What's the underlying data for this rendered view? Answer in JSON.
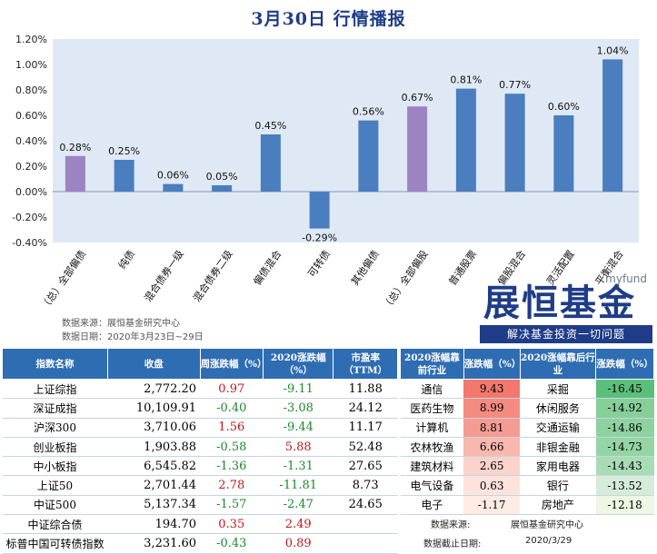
{
  "title": "3月30日  行情播报",
  "chart_data": {
    "type": "bar",
    "categories": [
      "（总）全部偏债",
      "纯债",
      "混合债券一级",
      "混合债券二级",
      "偏债混合",
      "可转债",
      "其他偏债",
      "（总）全部偏股",
      "普通股票",
      "偏股混合",
      "灵活配置",
      "平衡混合"
    ],
    "values": [
      0.28,
      0.25,
      0.06,
      0.05,
      0.45,
      -0.29,
      0.56,
      0.67,
      0.81,
      0.77,
      0.6,
      1.04
    ],
    "data_labels": [
      "0.28%",
      "0.25%",
      "0.06%",
      "0.05%",
      "0.45%",
      "-0.29%",
      "0.56%",
      "0.67%",
      "0.81%",
      "0.77%",
      "0.60%",
      "1.04%"
    ],
    "highlight": [
      true,
      false,
      false,
      false,
      false,
      false,
      false,
      true,
      false,
      false,
      false,
      false
    ],
    "yticks": [
      "1.20%",
      "1.00%",
      "0.80%",
      "0.60%",
      "0.40%",
      "0.20%",
      "0.00%",
      "-0.20%",
      "-0.40%"
    ],
    "ylim": [
      -0.4,
      1.2
    ],
    "colors": {
      "bar": "#4a7ebf",
      "highlight": "#9c84c2",
      "plot_bg": "#dfe8f5"
    }
  },
  "source": {
    "line1": "数据来源：展恒基金研究中心",
    "line2": "数据日期：2020年3月23日~29日"
  },
  "logo": {
    "myfund": "myfund",
    "brand": "展恒基金",
    "slogan": "解决基金投资一切问题"
  },
  "index_table": {
    "headers": [
      "指数名称",
      "收盘",
      "周涨跌幅（%）",
      "2020涨跌幅（%）",
      "市盈率（TTM）"
    ],
    "rows": [
      {
        "name": "上证综指",
        "close": "2,772.20",
        "week": "0.97",
        "year": "-9.11",
        "pe": "11.88"
      },
      {
        "name": "深证成指",
        "close": "10,109.91",
        "week": "-0.40",
        "year": "-3.08",
        "pe": "24.12"
      },
      {
        "name": "沪深300",
        "close": "3,710.06",
        "week": "1.56",
        "year": "-9.44",
        "pe": "11.17"
      },
      {
        "name": "创业板指",
        "close": "1,903.88",
        "week": "-0.58",
        "year": "5.88",
        "pe": "52.48"
      },
      {
        "name": "中小板指",
        "close": "6,545.82",
        "week": "-1.36",
        "year": "-1.31",
        "pe": "27.65"
      },
      {
        "name": "上证50",
        "close": "2,701.44",
        "week": "2.78",
        "year": "-11.81",
        "pe": "8.73"
      },
      {
        "name": "中证500",
        "close": "5,137.34",
        "week": "-1.57",
        "year": "-2.47",
        "pe": "24.65"
      },
      {
        "name": "中证综合债",
        "close": "194.70",
        "week": "0.35",
        "year": "2.49",
        "pe": ""
      },
      {
        "name": "标普中国可转债指数",
        "close": "3,231.60",
        "week": "-0.43",
        "year": "0.89",
        "pe": ""
      }
    ]
  },
  "industry_table": {
    "headers": [
      "2020涨幅靠前行业",
      "涨跌幅（%）",
      "2020涨幅靠后行业",
      "涨跌幅（%）"
    ],
    "rows": [
      {
        "top": "通信",
        "top_val": "9.43",
        "bottom": "采掘",
        "bottom_val": "-16.45"
      },
      {
        "top": "医药生物",
        "top_val": "8.99",
        "bottom": "休闲服务",
        "bottom_val": "-14.92"
      },
      {
        "top": "计算机",
        "top_val": "8.81",
        "bottom": "交通运输",
        "bottom_val": "-14.86"
      },
      {
        "top": "农林牧渔",
        "top_val": "6.66",
        "bottom": "非银金融",
        "bottom_val": "-14.73"
      },
      {
        "top": "建筑材料",
        "top_val": "2.65",
        "bottom": "家用电器",
        "bottom_val": "-14.43"
      },
      {
        "top": "电气设备",
        "top_val": "0.63",
        "bottom": "银行",
        "bottom_val": "-13.52"
      },
      {
        "top": "电子",
        "top_val": "-1.17",
        "bottom": "房地产",
        "bottom_val": "-12.18"
      }
    ],
    "top_colors": [
      "#f2786e",
      "#f48b81",
      "#f59c92",
      "#f8b8ae",
      "#fbd3cb",
      "#fde3dc",
      "#fdece4"
    ],
    "bottom_colors": [
      "#5bbf7a",
      "#86cf98",
      "#8ed29f",
      "#94d5a4",
      "#a8dcb5",
      "#d5ecd9",
      "#eef6e4"
    ],
    "footer_label1": "数据来源:",
    "footer_value1": "展恒基金研究中心",
    "footer_label2": "数据截止日期:",
    "footer_value2": "2020/3/29"
  }
}
